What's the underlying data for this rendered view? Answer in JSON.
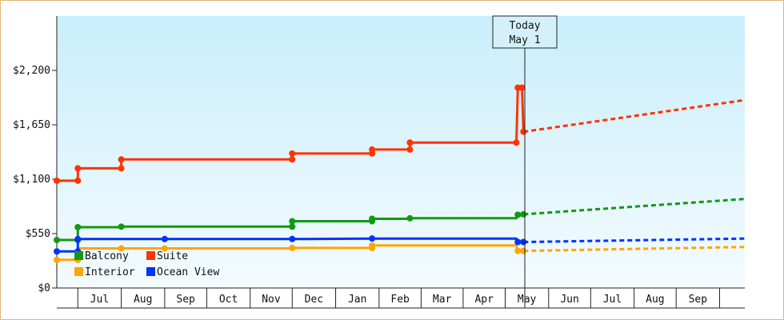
{
  "chart_data": {
    "type": "line",
    "title": "",
    "xlabel": "",
    "ylabel": "",
    "ylim": [
      0,
      2750
    ],
    "y_ticks": [
      {
        "value": 0,
        "label": "$0"
      },
      {
        "value": 550,
        "label": "$550"
      },
      {
        "value": 1100,
        "label": "$1,100"
      },
      {
        "value": 1650,
        "label": "$1,650"
      },
      {
        "value": 2200,
        "label": "$2,200"
      }
    ],
    "x_start": "2024-06-01",
    "x_end": "2025-10-05",
    "months": [
      {
        "start": "2024-06-16",
        "label": "Jul"
      },
      {
        "start": "2024-07-17",
        "label": "Aug"
      },
      {
        "start": "2024-08-17",
        "label": "Sep"
      },
      {
        "start": "2024-09-16",
        "label": "Oct"
      },
      {
        "start": "2024-10-17",
        "label": "Nov"
      },
      {
        "start": "2024-11-16",
        "label": "Dec"
      },
      {
        "start": "2024-12-17",
        "label": "Jan"
      },
      {
        "start": "2025-01-17",
        "label": "Feb"
      },
      {
        "start": "2025-02-16",
        "label": "Mar"
      },
      {
        "start": "2025-03-18",
        "label": "Apr"
      },
      {
        "start": "2025-04-17",
        "label": "May"
      },
      {
        "start": "2025-05-18",
        "label": "Jun"
      },
      {
        "start": "2025-06-17",
        "label": "Jul"
      },
      {
        "start": "2025-07-18",
        "label": "Aug"
      },
      {
        "start": "2025-08-17",
        "label": "Sep"
      },
      {
        "start": "2025-09-17",
        "label": ""
      }
    ],
    "today": {
      "date": "2025-05-01",
      "line1": "Today",
      "line2": "May 1"
    },
    "legend": {
      "placement": "bottom-left",
      "columns": 2
    },
    "colors": {
      "balcony": "#119911",
      "suite": "#ff3300",
      "interior": "#ffa500",
      "ocean": "#0033ff",
      "plot_top": "#c9eefb",
      "plot_bottom": "#f4fbff",
      "frame": "#e0b87a"
    },
    "series": [
      {
        "name": "Suite",
        "color": "#ff3300",
        "history": [
          {
            "x": "2024-06-01",
            "y": 1085
          },
          {
            "x": "2024-06-16",
            "y": 1085
          },
          {
            "x": "2024-06-16",
            "y": 1210
          },
          {
            "x": "2024-07-17",
            "y": 1210
          },
          {
            "x": "2024-07-17",
            "y": 1300
          },
          {
            "x": "2024-11-16",
            "y": 1300
          },
          {
            "x": "2024-11-16",
            "y": 1360
          },
          {
            "x": "2025-01-12",
            "y": 1360
          },
          {
            "x": "2025-01-12",
            "y": 1400
          },
          {
            "x": "2025-02-08",
            "y": 1400
          },
          {
            "x": "2025-02-08",
            "y": 1470
          },
          {
            "x": "2025-04-25",
            "y": 1470
          },
          {
            "x": "2025-04-26",
            "y": 2025
          },
          {
            "x": "2025-04-29",
            "y": 2025
          },
          {
            "x": "2025-04-30",
            "y": 1580
          }
        ],
        "markers": [
          {
            "x": "2024-06-01",
            "y": 1085
          },
          {
            "x": "2024-06-16",
            "y": 1085
          },
          {
            "x": "2024-06-16",
            "y": 1210
          },
          {
            "x": "2024-07-17",
            "y": 1210
          },
          {
            "x": "2024-07-17",
            "y": 1300
          },
          {
            "x": "2024-11-16",
            "y": 1300
          },
          {
            "x": "2024-11-16",
            "y": 1360
          },
          {
            "x": "2025-01-12",
            "y": 1360
          },
          {
            "x": "2025-01-12",
            "y": 1400
          },
          {
            "x": "2025-02-08",
            "y": 1400
          },
          {
            "x": "2025-02-08",
            "y": 1470
          },
          {
            "x": "2025-04-25",
            "y": 1470
          },
          {
            "x": "2025-04-26",
            "y": 2025
          },
          {
            "x": "2025-04-29",
            "y": 2025
          },
          {
            "x": "2025-04-30",
            "y": 1580
          }
        ],
        "forecast": [
          {
            "x": "2025-04-30",
            "y": 1580
          },
          {
            "x": "2025-10-05",
            "y": 1900
          }
        ]
      },
      {
        "name": "Balcony",
        "color": "#119911",
        "history": [
          {
            "x": "2024-06-01",
            "y": 485
          },
          {
            "x": "2024-06-16",
            "y": 485
          },
          {
            "x": "2024-06-16",
            "y": 615
          },
          {
            "x": "2024-07-17",
            "y": 615
          },
          {
            "x": "2024-07-17",
            "y": 620
          },
          {
            "x": "2024-11-16",
            "y": 620
          },
          {
            "x": "2024-11-16",
            "y": 675
          },
          {
            "x": "2025-01-12",
            "y": 675
          },
          {
            "x": "2025-01-12",
            "y": 700
          },
          {
            "x": "2025-02-08",
            "y": 700
          },
          {
            "x": "2025-02-08",
            "y": 705
          },
          {
            "x": "2025-04-25",
            "y": 705
          },
          {
            "x": "2025-04-26",
            "y": 740
          },
          {
            "x": "2025-04-30",
            "y": 745
          }
        ],
        "markers": [
          {
            "x": "2024-06-01",
            "y": 485
          },
          {
            "x": "2024-06-16",
            "y": 485
          },
          {
            "x": "2024-06-16",
            "y": 615
          },
          {
            "x": "2024-07-17",
            "y": 620
          },
          {
            "x": "2024-11-16",
            "y": 620
          },
          {
            "x": "2024-11-16",
            "y": 675
          },
          {
            "x": "2025-01-12",
            "y": 675
          },
          {
            "x": "2025-01-12",
            "y": 700
          },
          {
            "x": "2025-02-08",
            "y": 705
          },
          {
            "x": "2025-04-26",
            "y": 740
          },
          {
            "x": "2025-04-30",
            "y": 745
          }
        ],
        "forecast": [
          {
            "x": "2025-04-30",
            "y": 745
          },
          {
            "x": "2025-10-05",
            "y": 900
          }
        ]
      },
      {
        "name": "Interior",
        "color": "#ffa500",
        "history": [
          {
            "x": "2024-06-01",
            "y": 285
          },
          {
            "x": "2024-06-16",
            "y": 285
          },
          {
            "x": "2024-06-16",
            "y": 400
          },
          {
            "x": "2024-11-16",
            "y": 400
          },
          {
            "x": "2024-11-16",
            "y": 405
          },
          {
            "x": "2025-01-12",
            "y": 405
          },
          {
            "x": "2025-01-12",
            "y": 430
          },
          {
            "x": "2025-04-25",
            "y": 430
          },
          {
            "x": "2025-04-26",
            "y": 375
          },
          {
            "x": "2025-04-30",
            "y": 375
          }
        ],
        "markers": [
          {
            "x": "2024-06-01",
            "y": 285
          },
          {
            "x": "2024-06-16",
            "y": 285
          },
          {
            "x": "2024-07-17",
            "y": 400
          },
          {
            "x": "2024-08-17",
            "y": 400
          },
          {
            "x": "2024-11-16",
            "y": 405
          },
          {
            "x": "2025-01-12",
            "y": 405
          },
          {
            "x": "2025-01-12",
            "y": 430
          },
          {
            "x": "2025-04-26",
            "y": 375
          },
          {
            "x": "2025-04-30",
            "y": 375
          }
        ],
        "forecast": [
          {
            "x": "2025-04-30",
            "y": 375
          },
          {
            "x": "2025-10-05",
            "y": 415
          }
        ]
      },
      {
        "name": "Ocean View",
        "color": "#0033ff",
        "history": [
          {
            "x": "2024-06-01",
            "y": 370
          },
          {
            "x": "2024-06-16",
            "y": 370
          },
          {
            "x": "2024-06-16",
            "y": 495
          },
          {
            "x": "2024-11-16",
            "y": 495
          },
          {
            "x": "2025-01-12",
            "y": 500
          },
          {
            "x": "2025-04-25",
            "y": 500
          },
          {
            "x": "2025-04-26",
            "y": 465
          },
          {
            "x": "2025-04-30",
            "y": 465
          }
        ],
        "markers": [
          {
            "x": "2024-06-01",
            "y": 370
          },
          {
            "x": "2024-06-16",
            "y": 370
          },
          {
            "x": "2024-06-16",
            "y": 495
          },
          {
            "x": "2024-08-17",
            "y": 495
          },
          {
            "x": "2024-11-16",
            "y": 495
          },
          {
            "x": "2025-01-12",
            "y": 500
          },
          {
            "x": "2025-04-26",
            "y": 465
          },
          {
            "x": "2025-04-30",
            "y": 465
          }
        ],
        "forecast": [
          {
            "x": "2025-04-30",
            "y": 465
          },
          {
            "x": "2025-10-05",
            "y": 500
          }
        ]
      }
    ],
    "legend_order": [
      "Balcony",
      "Suite",
      "Interior",
      "Ocean View"
    ]
  }
}
